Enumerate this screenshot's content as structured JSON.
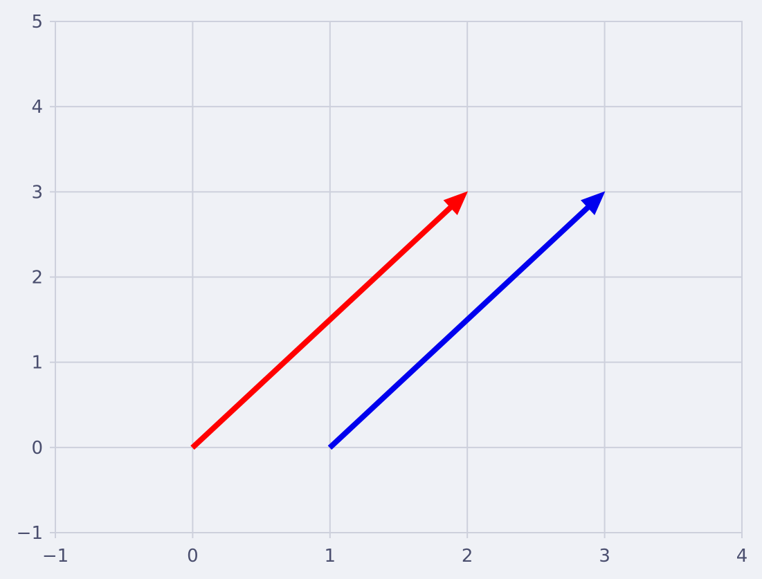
{
  "chart_data": {
    "type": "vector-field",
    "title": "",
    "xlabel": "",
    "ylabel": "",
    "xlim": [
      -1,
      4
    ],
    "ylim": [
      -1,
      5
    ],
    "xticks": [
      -1,
      0,
      1,
      2,
      3,
      4
    ],
    "yticks": [
      -1,
      0,
      1,
      2,
      3,
      4,
      5
    ],
    "xtick_labels": [
      "−1",
      "0",
      "1",
      "2",
      "3",
      "4"
    ],
    "ytick_labels": [
      "−1",
      "0",
      "1",
      "2",
      "3",
      "4",
      "5"
    ],
    "grid": true,
    "vectors": [
      {
        "x0": 0,
        "y0": 0,
        "dx": 2,
        "dy": 3,
        "color": "#ff0000"
      },
      {
        "x0": 1,
        "y0": 0,
        "dx": 2,
        "dy": 3,
        "color": "#0000ee"
      }
    ]
  }
}
